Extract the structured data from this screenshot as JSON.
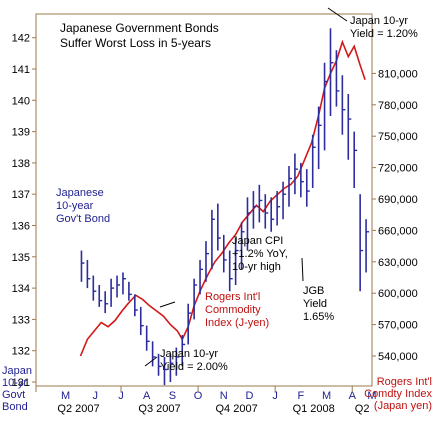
{
  "chart_data": {
    "type": "line",
    "title_line1": "Japanese Government Bonds",
    "title_line2": "Suffer Worst Loss in 5-years",
    "left_axis_label": [
      "Japan",
      "10-yr",
      "Govt",
      "Bond"
    ],
    "right_axis_label": [
      "Rogers Int'l",
      "Comdty Index",
      "(Japan yen)"
    ],
    "left_ticks": [
      "131",
      "132",
      "133",
      "134",
      "135",
      "136",
      "137",
      "138",
      "139",
      "140",
      "141",
      "142"
    ],
    "right_ticks": [
      "540,000",
      "570,000",
      "600,000",
      "630,000",
      "660,000",
      "690,000",
      "720,000",
      "750,000",
      "780,000",
      "810,000"
    ],
    "months": [
      "M",
      "J",
      "J",
      "A",
      "S",
      "O",
      "N",
      "D",
      "J",
      "F",
      "M",
      "A",
      "M"
    ],
    "quarters": [
      "Q2 2007",
      "Q3 2007",
      "Q4 2007",
      "Q1 2008",
      "Q2"
    ],
    "annotations": {
      "jgb_series_label": [
        "Japanese",
        "10-year",
        "Gov't Bond"
      ],
      "rogers_series_label": [
        "Rogers Int'l",
        "Commodity",
        "Index (J-yen)"
      ],
      "yield_low": [
        "Japan 10-yr",
        "Yield = 2.00%"
      ],
      "yield_high": [
        "Japan 10-yr",
        "Yield = 1.20%"
      ],
      "cpi": [
        "Japan CPI",
        "+1.2% YoY,",
        "10-yr high"
      ],
      "jgb_end": [
        "JGB",
        "Yield",
        "1.65%"
      ]
    },
    "series": [
      {
        "id": "jgb",
        "color": "#2c2c9e",
        "style": "ohlc-bars",
        "axis": "left",
        "points": [
          [
            4.6,
            134.2,
            135.2,
            134.8
          ],
          [
            5.2,
            134.0,
            134.9,
            134.3
          ],
          [
            5.8,
            133.6,
            134.4,
            133.9
          ],
          [
            6.4,
            133.4,
            134.1,
            133.6
          ],
          [
            7.0,
            133.2,
            133.9,
            133.5
          ],
          [
            7.6,
            133.4,
            134.3,
            134.0
          ],
          [
            8.2,
            133.7,
            134.4,
            134.1
          ],
          [
            8.8,
            133.8,
            134.5,
            134.3
          ],
          [
            9.4,
            133.6,
            134.2,
            133.8
          ],
          [
            10.0,
            133.1,
            133.8,
            133.3
          ],
          [
            10.6,
            132.5,
            133.4,
            132.8
          ],
          [
            11.2,
            132.0,
            132.8,
            132.3
          ],
          [
            11.8,
            131.5,
            132.3,
            131.8
          ],
          [
            12.4,
            131.2,
            131.9,
            131.5
          ],
          [
            13.0,
            130.9,
            131.8,
            131.4
          ],
          [
            13.6,
            131.0,
            131.9,
            131.6
          ],
          [
            14.2,
            131.2,
            132.1,
            131.8
          ],
          [
            14.8,
            131.5,
            132.5,
            132.2
          ],
          [
            15.4,
            132.2,
            133.5,
            133.2
          ],
          [
            16.0,
            133.0,
            134.3,
            134.1
          ],
          [
            16.6,
            133.8,
            134.9,
            134.6
          ],
          [
            17.2,
            134.2,
            135.5,
            135.1
          ],
          [
            17.8,
            134.6,
            136.5,
            136.2
          ],
          [
            18.4,
            135.2,
            136.7,
            135.6
          ],
          [
            19.0,
            134.5,
            135.7,
            134.9
          ],
          [
            19.6,
            133.9,
            135.2,
            134.3
          ],
          [
            20.2,
            134.1,
            135.6,
            135.2
          ],
          [
            20.8,
            134.6,
            136.1,
            135.8
          ],
          [
            21.4,
            135.2,
            136.9,
            136.4
          ],
          [
            22.0,
            135.9,
            137.1,
            136.6
          ],
          [
            22.6,
            136.1,
            137.3,
            136.8
          ],
          [
            23.2,
            135.9,
            137.0,
            136.4
          ],
          [
            23.8,
            135.8,
            136.9,
            136.2
          ],
          [
            24.4,
            136.0,
            137.1,
            136.6
          ],
          [
            25.0,
            136.2,
            137.4,
            137.0
          ],
          [
            25.6,
            136.6,
            137.9,
            137.5
          ],
          [
            26.2,
            137.0,
            138.3,
            137.8
          ],
          [
            26.8,
            136.9,
            138.0,
            137.4
          ],
          [
            27.4,
            136.6,
            137.8,
            137.1
          ],
          [
            28.0,
            137.2,
            138.9,
            138.5
          ],
          [
            28.6,
            137.8,
            139.8,
            139.2
          ],
          [
            29.2,
            138.4,
            141.2,
            140.6
          ],
          [
            29.8,
            139.5,
            142.3,
            141.2
          ],
          [
            30.4,
            139.8,
            141.6,
            140.3
          ],
          [
            31.0,
            138.9,
            140.8,
            139.7
          ],
          [
            31.6,
            138.1,
            140.2,
            139.4
          ],
          [
            32.2,
            137.2,
            139.0,
            138.4
          ],
          [
            32.8,
            133.9,
            137.0,
            135.2
          ],
          [
            33.4,
            134.5,
            136.2,
            135.8
          ]
        ]
      },
      {
        "id": "rogers",
        "color": "#d21818",
        "style": "line",
        "axis": "right",
        "points": [
          [
            4.5,
            540000
          ],
          [
            5.2,
            556000
          ],
          [
            5.9,
            564000
          ],
          [
            6.6,
            572000
          ],
          [
            7.3,
            568000
          ],
          [
            8.0,
            574000
          ],
          [
            8.7,
            583000
          ],
          [
            9.4,
            591000
          ],
          [
            10.1,
            598000
          ],
          [
            10.8,
            594000
          ],
          [
            11.5,
            588000
          ],
          [
            12.2,
            583000
          ],
          [
            12.9,
            578000
          ],
          [
            13.6,
            570000
          ],
          [
            14.3,
            564000
          ],
          [
            14.8,
            556000
          ],
          [
            15.4,
            568000
          ],
          [
            16.0,
            588000
          ],
          [
            16.7,
            604000
          ],
          [
            17.4,
            618000
          ],
          [
            18.1,
            630000
          ],
          [
            18.8,
            638000
          ],
          [
            19.5,
            648000
          ],
          [
            20.2,
            656000
          ],
          [
            20.9,
            668000
          ],
          [
            21.6,
            676000
          ],
          [
            22.3,
            684000
          ],
          [
            23.0,
            678000
          ],
          [
            23.7,
            688000
          ],
          [
            24.4,
            694000
          ],
          [
            25.1,
            700000
          ],
          [
            25.8,
            704000
          ],
          [
            26.5,
            712000
          ],
          [
            27.2,
            728000
          ],
          [
            27.9,
            744000
          ],
          [
            28.6,
            770000
          ],
          [
            29.2,
            796000
          ],
          [
            29.8,
            810000
          ],
          [
            30.4,
            822000
          ],
          [
            31.0,
            840000
          ],
          [
            31.6,
            826000
          ],
          [
            32.2,
            836000
          ],
          [
            32.8,
            818000
          ],
          [
            33.3,
            804000
          ]
        ]
      }
    ]
  }
}
